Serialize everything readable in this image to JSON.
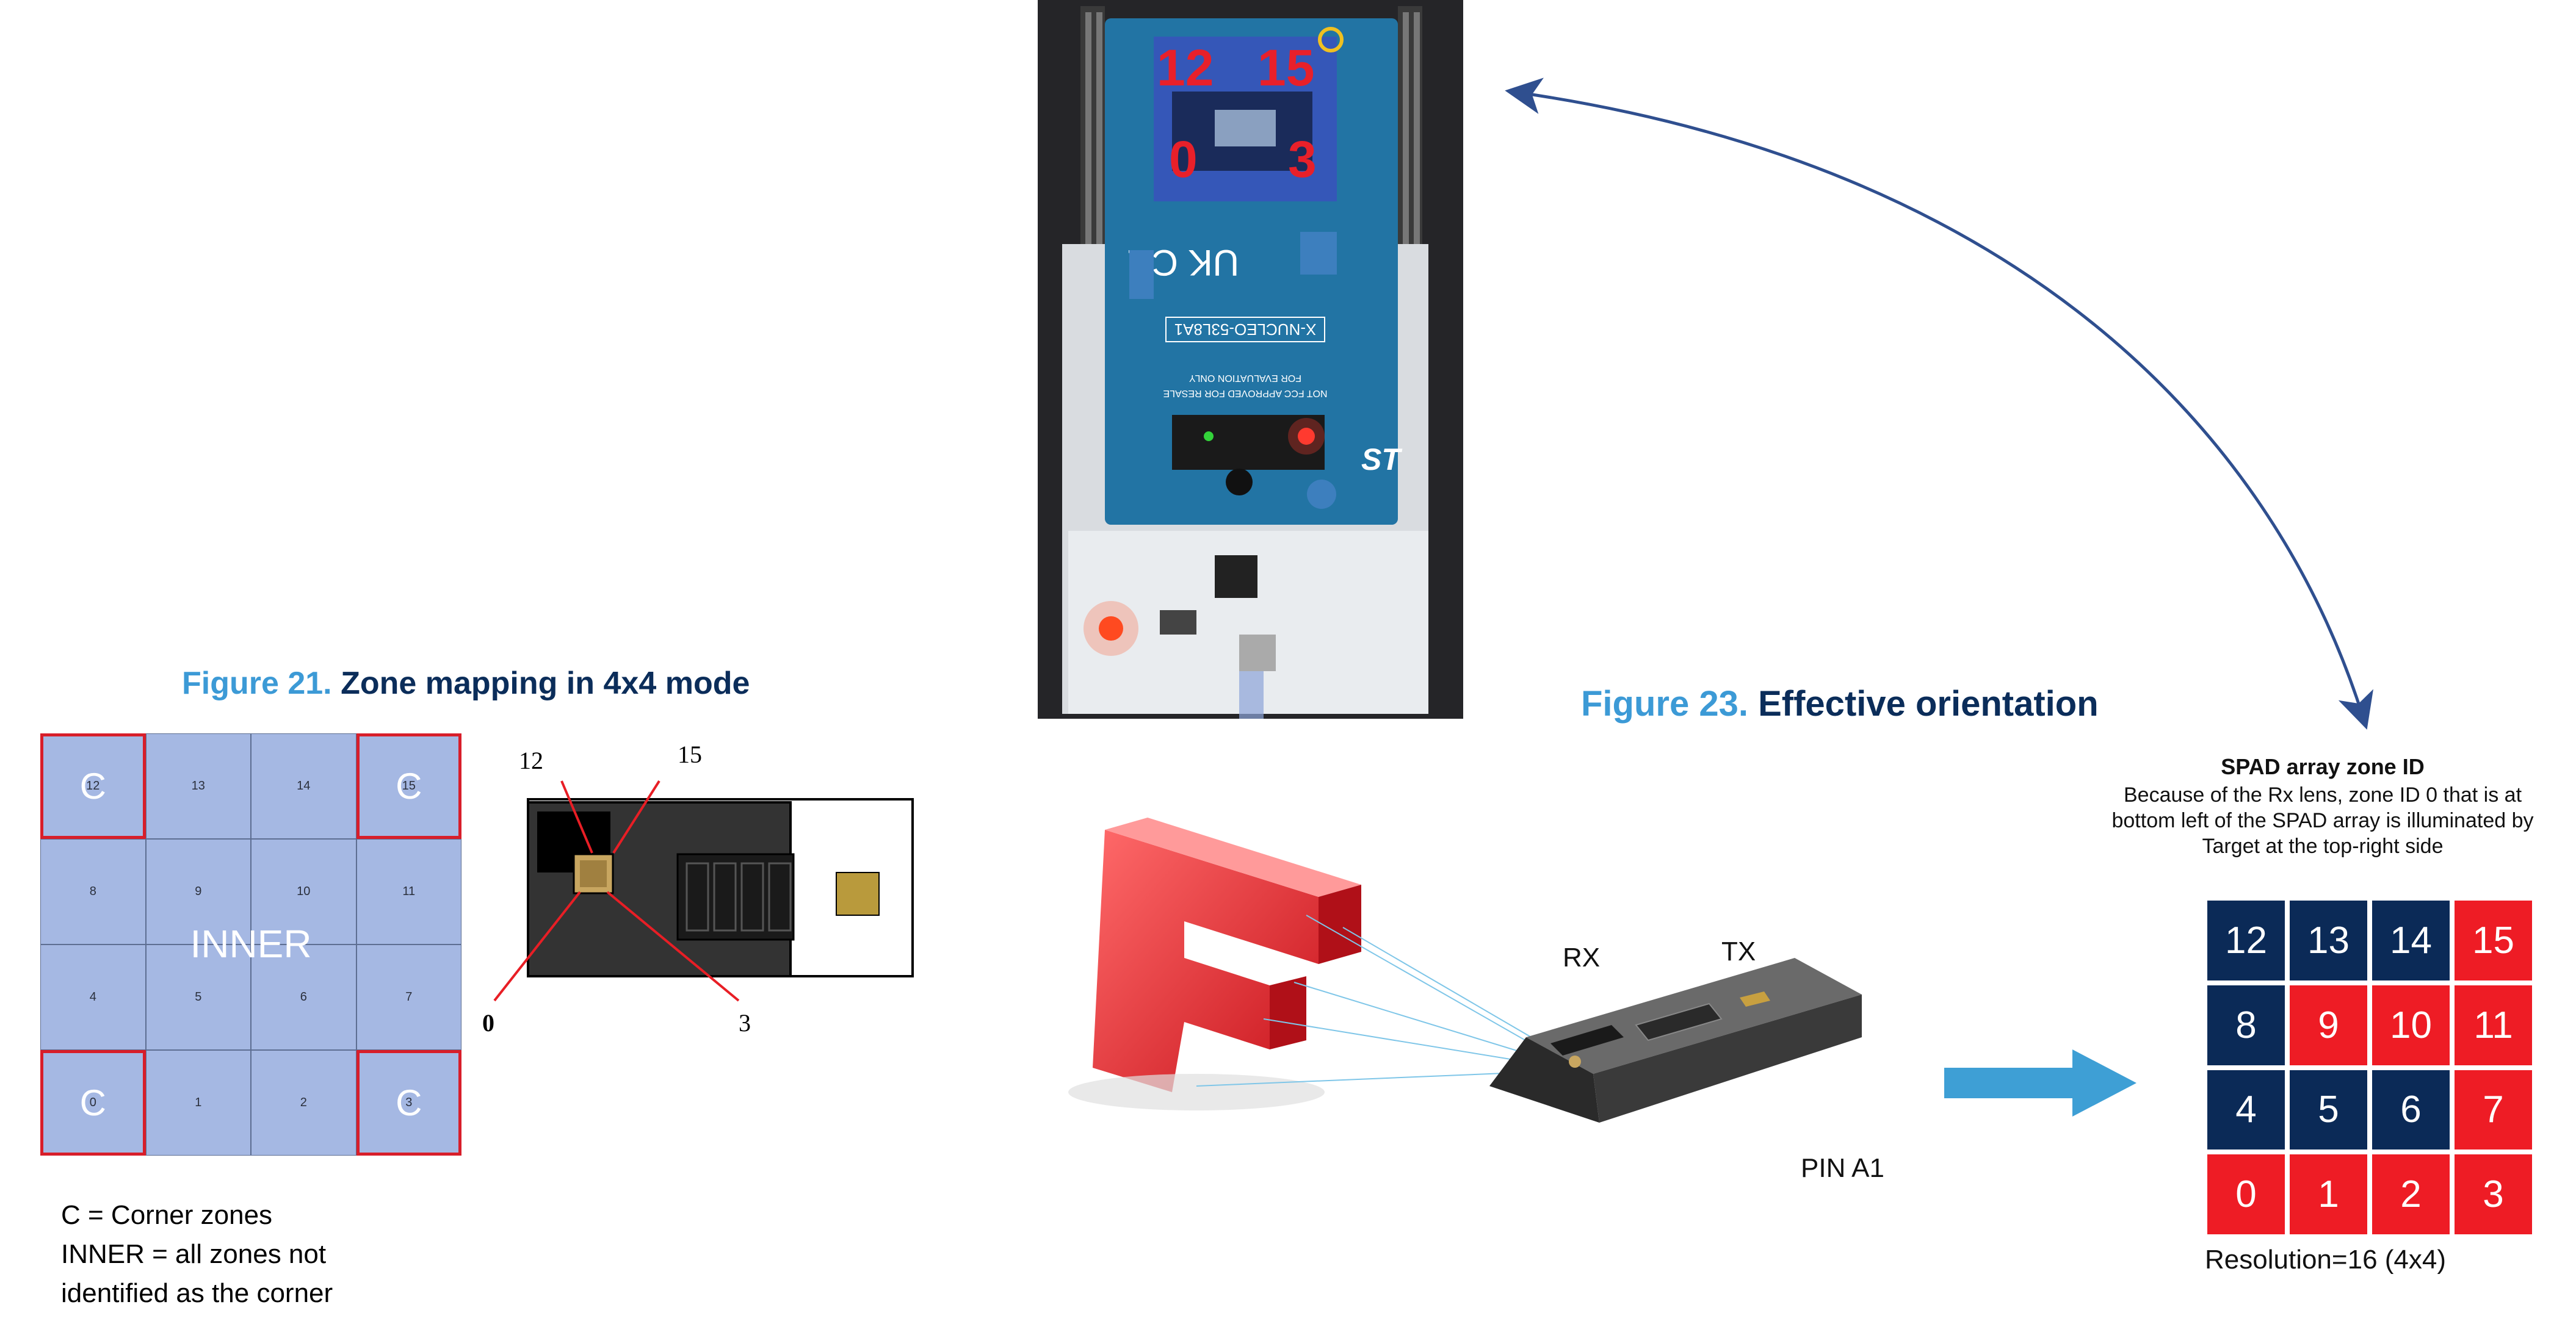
{
  "fig21": {
    "num": "Figure 21.",
    "name": "Zone mapping in 4x4 mode",
    "zones": [
      {
        "id": "12",
        "corner": true
      },
      {
        "id": "13",
        "corner": false
      },
      {
        "id": "14",
        "corner": false
      },
      {
        "id": "15",
        "corner": true
      },
      {
        "id": "8",
        "corner": false
      },
      {
        "id": "9",
        "corner": false
      },
      {
        "id": "10",
        "corner": false
      },
      {
        "id": "11",
        "corner": false
      },
      {
        "id": "4",
        "corner": false
      },
      {
        "id": "5",
        "corner": false
      },
      {
        "id": "6",
        "corner": false
      },
      {
        "id": "7",
        "corner": false
      },
      {
        "id": "0",
        "corner": true
      },
      {
        "id": "1",
        "corner": false
      },
      {
        "id": "2",
        "corner": false
      },
      {
        "id": "3",
        "corner": true
      }
    ],
    "corner_letter": "C",
    "inner_label": "INNER",
    "sensor_labels": {
      "top_left": "12",
      "top_right": "15",
      "bottom_left": "0",
      "bottom_right": "3"
    },
    "notes": [
      "C = Corner zones",
      "INNER = all zones not",
      "identified as the corner"
    ]
  },
  "photo": {
    "overlay_top_left": "12",
    "overlay_top_right": "15",
    "overlay_bottom_left": "0",
    "overlay_bottom_right": "3",
    "board_label": "X-NUCLEO-53L8A1",
    "fcc_line1": "FOR EVALUATION ONLY",
    "fcc_line2": "NOT FCC APPROVED FOR RESALE",
    "brand": "ST",
    "board_color": "#1f6d9c",
    "overlay_color": "#e8202a"
  },
  "fig23": {
    "num": "Figure 23.",
    "name": "Effective orientation",
    "rx": "RX",
    "tx": "TX",
    "pin": "PIN A1",
    "spad_title": "SPAD array zone ID",
    "spad_desc": [
      "Because of the Rx lens, zone ID 0 that is at",
      "bottom left of the SPAD array is illuminated by",
      "Target at the top-right side"
    ],
    "spad_zones": [
      {
        "id": "12",
        "color": "#0b2a57"
      },
      {
        "id": "13",
        "color": "#0b2a57"
      },
      {
        "id": "14",
        "color": "#0b2a57"
      },
      {
        "id": "15",
        "color": "#ee1c25"
      },
      {
        "id": "8",
        "color": "#0b2a57"
      },
      {
        "id": "9",
        "color": "#ee1c25"
      },
      {
        "id": "10",
        "color": "#ee1c25"
      },
      {
        "id": "11",
        "color": "#ee1c25"
      },
      {
        "id": "4",
        "color": "#0b2a57"
      },
      {
        "id": "5",
        "color": "#0b2a57"
      },
      {
        "id": "6",
        "color": "#0b2a57"
      },
      {
        "id": "7",
        "color": "#ee1c25"
      },
      {
        "id": "0",
        "color": "#ee1c25"
      },
      {
        "id": "1",
        "color": "#ee1c25"
      },
      {
        "id": "2",
        "color": "#ee1c25"
      },
      {
        "id": "3",
        "color": "#ee1c25"
      }
    ],
    "resolution": "Resolution=16 (4x4)"
  },
  "colors": {
    "accent_blue": "#3c9ad6",
    "dark_navy": "#0b2d5a",
    "zone_blue": "#a5b8e3",
    "red": "#d81e2a",
    "arrow_blue": "#2f4f8f"
  }
}
